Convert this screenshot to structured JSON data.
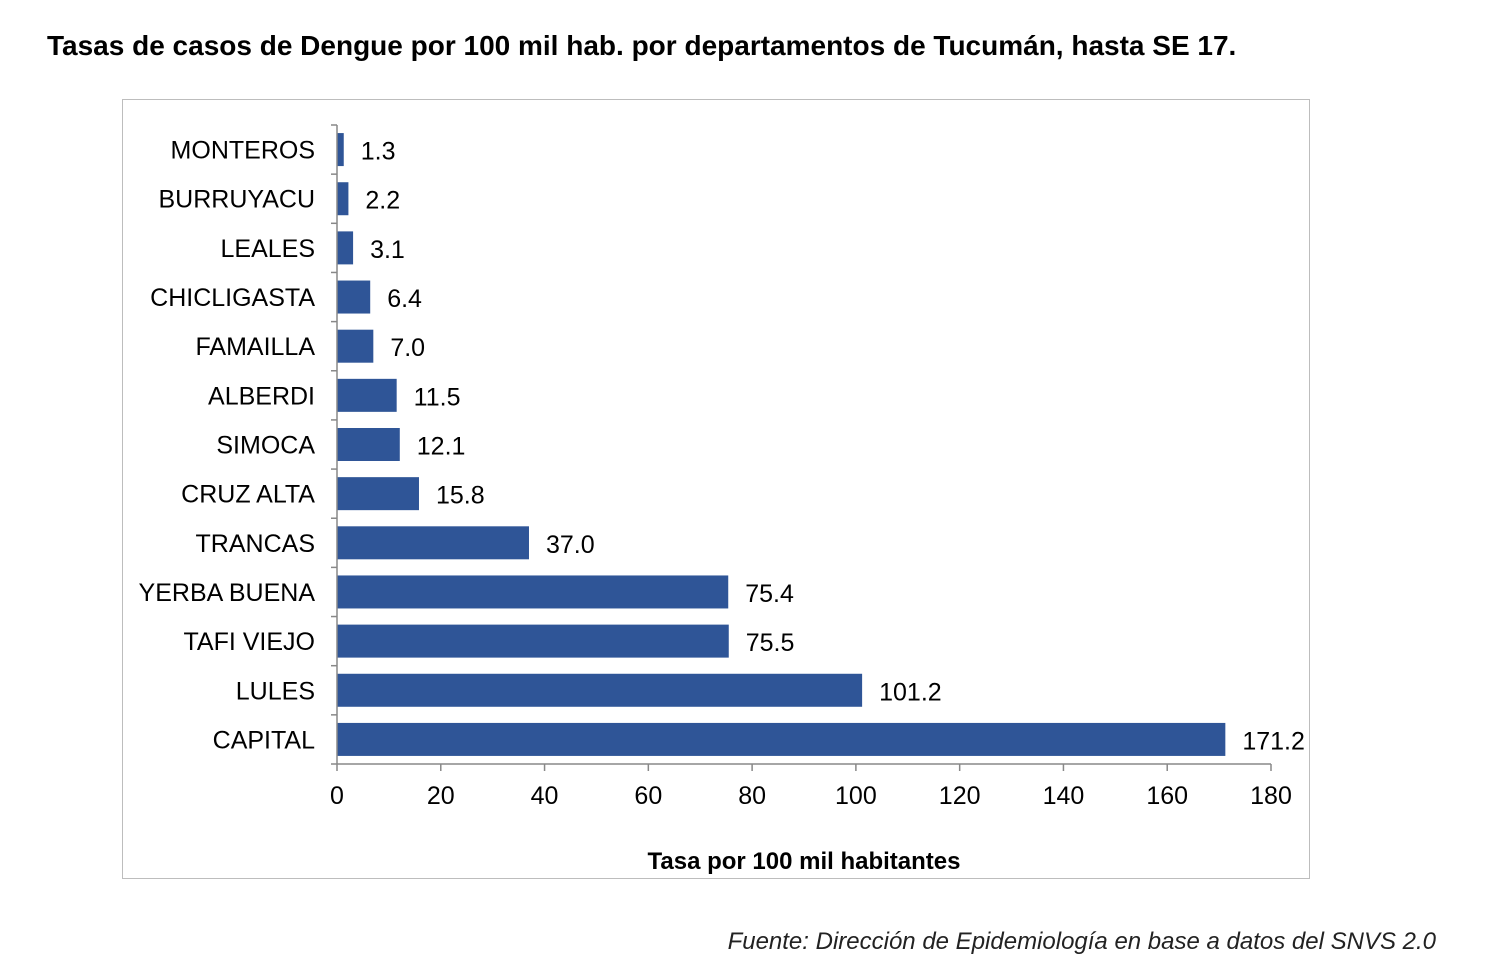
{
  "title": "Tasas de casos de Dengue por 100 mil hab. por departamentos de Tucumán, hasta SE 17.",
  "source": "Fuente: Dirección de Epidemiología en base a datos del SNVS 2.0",
  "chart_data": {
    "type": "bar",
    "orientation": "horizontal",
    "title": "Tasas de casos de Dengue por 100 mil hab. por departamentos de Tucumán, hasta SE 17.",
    "xlabel": "Tasa por 100 mil habitantes",
    "ylabel": "",
    "categories": [
      "MONTEROS",
      "BURRUYACU",
      "LEALES",
      "CHICLIGASTA",
      "FAMAILLA",
      "ALBERDI",
      "SIMOCA",
      "CRUZ ALTA",
      "TRANCAS",
      "YERBA BUENA",
      "TAFI VIEJO",
      "LULES",
      "CAPITAL"
    ],
    "values": [
      1.3,
      2.2,
      3.1,
      6.4,
      7.0,
      11.5,
      12.1,
      15.8,
      37.0,
      75.4,
      75.5,
      101.2,
      171.2
    ],
    "data_labels": [
      "1.3",
      "2.2",
      "3.1",
      "6.4",
      "7.0",
      "11.5",
      "12.1",
      "15.8",
      "37.0",
      "75.4",
      "75.5",
      "101.2",
      "171.2"
    ],
    "xlim": [
      0,
      180
    ],
    "xticks": [
      0,
      20,
      40,
      60,
      80,
      100,
      120,
      140,
      160,
      180
    ],
    "grid": false,
    "legend": "none",
    "bar_color": "#2f5597"
  }
}
